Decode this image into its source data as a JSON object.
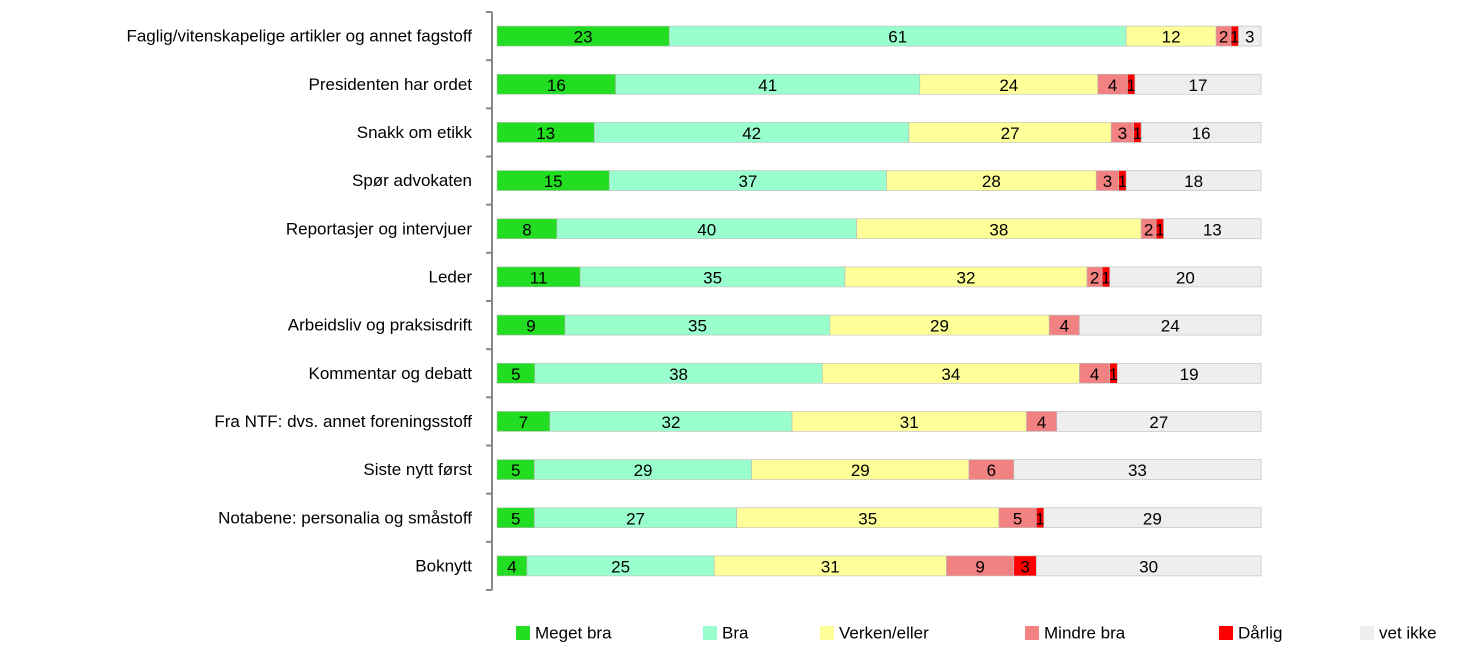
{
  "chart_data": {
    "type": "stacked_bar_horizontal",
    "categories": [
      "Faglig/vitenskapelige artikler og annet fagstoff",
      "Presidenten har ordet",
      "Snakk om etikk",
      "Spør advokaten",
      "Reportasjer og intervjuer",
      "Leder",
      "Arbeidsliv og praksisdrift",
      "Kommentar og debatt",
      "Fra NTF: dvs. annet foreningsstoff",
      "Siste nytt først",
      "Notabene: personalia og småstoff",
      "Boknytt"
    ],
    "series": [
      {
        "name": "Meget bra",
        "color": "#22dd22",
        "values": [
          23,
          16,
          13,
          15,
          8,
          11,
          9,
          5,
          7,
          5,
          5,
          4
        ]
      },
      {
        "name": "Bra",
        "color": "#99ffcc",
        "values": [
          61,
          41,
          42,
          37,
          40,
          35,
          35,
          38,
          32,
          29,
          27,
          25
        ]
      },
      {
        "name": "Verken/eller",
        "color": "#ffff99",
        "values": [
          12,
          24,
          27,
          28,
          38,
          32,
          29,
          34,
          31,
          29,
          35,
          31
        ]
      },
      {
        "name": "Mindre bra",
        "color": "#f28282",
        "values": [
          2,
          4,
          3,
          3,
          2,
          2,
          4,
          4,
          4,
          6,
          5,
          9
        ]
      },
      {
        "name": "Dårlig",
        "color": "#ff0000",
        "values": [
          1,
          1,
          1,
          1,
          1,
          1,
          null,
          1,
          null,
          null,
          1,
          3
        ]
      },
      {
        "name": "vet ikke",
        "color": "#eeeeee",
        "values": [
          3,
          17,
          16,
          18,
          13,
          20,
          24,
          19,
          27,
          33,
          29,
          30
        ]
      }
    ],
    "legend": "bottom"
  }
}
